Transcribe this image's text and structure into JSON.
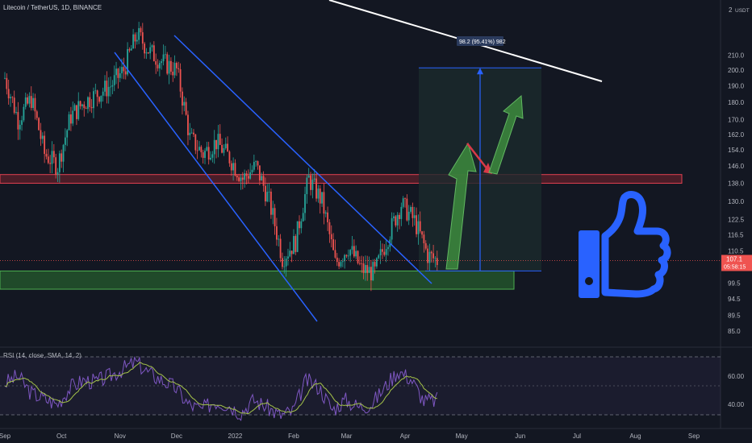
{
  "header": {
    "symbol_title": "Litecoin / TetherUS, 1D, BINANCE",
    "quote_currency": "USDT"
  },
  "colors": {
    "background": "#131722",
    "candle_up": "#26a69a",
    "candle_down": "#ef5350",
    "channel": "#2962ff",
    "resistance_zone": "#b22833",
    "support_zone": "#2e7d32",
    "trendline": "#ffffff",
    "target_arrow": "#3d8b3d",
    "rsi_line": "#7e57c2",
    "rsi_ma": "#a5c34a",
    "thumbs_up_icon": "#2962ff"
  },
  "chart_data": [
    {
      "type": "candlestick",
      "title": "Litecoin / TetherUS, 1D, BINANCE",
      "x_tick_labels": [
        "Sep",
        "Oct",
        "Nov",
        "Dec",
        "2022",
        "Feb",
        "Mar",
        "Apr",
        "May",
        "Jun",
        "Jul",
        "Aug",
        "Sep"
      ],
      "y_tick_labels": [
        "210.0",
        "200.0",
        "190.0",
        "180.0",
        "170.0",
        "162.0",
        "154.0",
        "146.0",
        "138.0",
        "130.0",
        "122.5",
        "116.5",
        "110.5",
        "99.5",
        "94.5",
        "89.5",
        "85.0"
      ],
      "y_top_label": "2",
      "scale": "log",
      "ylim": [
        83,
        240
      ],
      "price_label": "107.1",
      "countdown_label": "05:58:15",
      "close_series": [
        {
          "date": "2021-09-01",
          "close": 195
        },
        {
          "date": "2021-09-08",
          "close": 170
        },
        {
          "date": "2021-09-15",
          "close": 182
        },
        {
          "date": "2021-09-22",
          "close": 152
        },
        {
          "date": "2021-09-29",
          "close": 146
        },
        {
          "date": "2021-10-06",
          "close": 172
        },
        {
          "date": "2021-10-13",
          "close": 180
        },
        {
          "date": "2021-10-20",
          "close": 185
        },
        {
          "date": "2021-10-27",
          "close": 190
        },
        {
          "date": "2021-11-03",
          "close": 200
        },
        {
          "date": "2021-11-10",
          "close": 225
        },
        {
          "date": "2021-11-17",
          "close": 212
        },
        {
          "date": "2021-11-24",
          "close": 205
        },
        {
          "date": "2021-12-01",
          "close": 200
        },
        {
          "date": "2021-12-08",
          "close": 160
        },
        {
          "date": "2021-12-15",
          "close": 152
        },
        {
          "date": "2021-12-22",
          "close": 158
        },
        {
          "date": "2021-12-29",
          "close": 150
        },
        {
          "date": "2022-01-05",
          "close": 140
        },
        {
          "date": "2022-01-12",
          "close": 146
        },
        {
          "date": "2022-01-19",
          "close": 130
        },
        {
          "date": "2022-01-26",
          "close": 108
        },
        {
          "date": "2022-02-02",
          "close": 114
        },
        {
          "date": "2022-02-09",
          "close": 140
        },
        {
          "date": "2022-02-16",
          "close": 130
        },
        {
          "date": "2022-02-23",
          "close": 106
        },
        {
          "date": "2022-03-02",
          "close": 112
        },
        {
          "date": "2022-03-09",
          "close": 104
        },
        {
          "date": "2022-03-16",
          "close": 103
        },
        {
          "date": "2022-03-23",
          "close": 116
        },
        {
          "date": "2022-03-30",
          "close": 129
        },
        {
          "date": "2022-04-06",
          "close": 122
        },
        {
          "date": "2022-04-13",
          "close": 109
        },
        {
          "date": "2022-04-18",
          "close": 107.1
        }
      ],
      "zones": [
        {
          "label": "resistance",
          "from": 138,
          "to": 142
        },
        {
          "label": "support",
          "from": 97.5,
          "to": 103.5
        }
      ],
      "measure_label": "98.2 (95.41%) 982",
      "measure_range": [
        103.5,
        201.5
      ]
    },
    {
      "type": "line",
      "title": "RSI (14, close, SMA, 14, 2)",
      "y_tick_labels": [
        "60.00",
        "40.00"
      ],
      "ylim": [
        25,
        80
      ],
      "bands": [
        70,
        30
      ],
      "series": [
        {
          "values": [
            55,
            60,
            48,
            44,
            40,
            52,
            57,
            56,
            60,
            65,
            70,
            62,
            57,
            52,
            40,
            36,
            42,
            40,
            34,
            43,
            38,
            32,
            35,
            57,
            52,
            36,
            43,
            38,
            40,
            52,
            64,
            58,
            42,
            43
          ]
        }
      ]
    }
  ]
}
